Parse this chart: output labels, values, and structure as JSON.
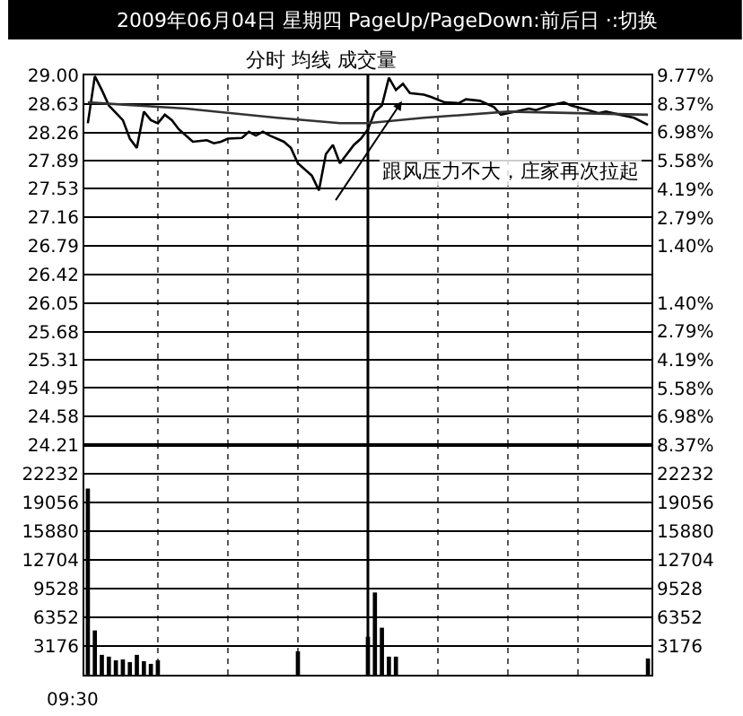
{
  "chart_data": [
    {
      "type": "line",
      "title": "2009年06月04日 星期四 PageUp/PageDown:前后日 ·:切换",
      "subtitle": "分时 均线 成交量",
      "categories": [
        null,
        null,
        null,
        null,
        null,
        null,
        null,
        null,
        null,
        null,
        null,
        null,
        null,
        null,
        null,
        null,
        null,
        null,
        null,
        null,
        null,
        null,
        null,
        null,
        null,
        null,
        null,
        null,
        null,
        null,
        null,
        null,
        null,
        null,
        null,
        null,
        null,
        null,
        null,
        null,
        null,
        null,
        null,
        null,
        null,
        null,
        null,
        null,
        null,
        null,
        null,
        null,
        null,
        null,
        null,
        null,
        null,
        null,
        null,
        null,
        null,
        null,
        null,
        null,
        null,
        null,
        null,
        null,
        null,
        null,
        null,
        null,
        null,
        null,
        null,
        null,
        null,
        null,
        null,
        null,
        null
      ],
      "series": [
        {
          "color": "#000000",
          "values": [
            28.38,
            28.99,
            28.81,
            28.61,
            null,
            28.42,
            28.18,
            28.06,
            28.53,
            28.42,
            28.38,
            28.49,
            28.42,
            28.3,
            28.22,
            28.14,
            null,
            28.16,
            28.12,
            28.14,
            28.18,
            null,
            28.19,
            28.27,
            28.22,
            28.27,
            28.22,
            null,
            28.14,
            28.06,
            27.86,
            null,
            27.7,
            27.51,
            27.98,
            28.1,
            27.86,
            27.98,
            28.1,
            28.18,
            28.3,
            28.53,
            28.61,
            28.97,
            28.81,
            28.89,
            28.77,
            null,
            28.75,
            28.72,
            null,
            28.65,
            null,
            28.64,
            28.69,
            null,
            28.67,
            null,
            28.59,
            28.49,
            null,
            28.53,
            null,
            28.57,
            28.55,
            null,
            28.61,
            null,
            28.65,
            28.61,
            null,
            28.56,
            null,
            28.51,
            28.53,
            null,
            28.49,
            null,
            28.45,
            null,
            28.36
          ]
        },
        {
          "color": "#333333",
          "values": [
            28.65,
            null,
            null,
            null,
            null,
            null,
            null,
            null,
            null,
            null,
            null,
            null,
            null,
            null,
            28.57,
            null,
            null,
            null,
            null,
            null,
            null,
            null,
            null,
            null,
            null,
            null,
            null,
            28.45,
            null,
            null,
            null,
            null,
            null,
            null,
            null,
            null,
            28.38,
            null,
            null,
            null,
            28.38,
            null,
            null,
            null,
            null,
            null,
            null,
            null,
            28.45,
            null,
            null,
            null,
            null,
            null,
            null,
            null,
            null,
            null,
            null,
            null,
            28.53,
            null,
            null,
            null,
            null,
            null,
            null,
            null,
            null,
            null,
            null,
            null,
            null,
            null,
            null,
            null,
            null,
            null,
            null,
            null,
            28.49
          ]
        }
      ],
      "ylim": [
        24.21,
        29.0
      ],
      "yticks": [
        {
          "value": 29.0,
          "label": "29.00"
        },
        {
          "value": 28.63,
          "label": "28.63"
        },
        {
          "value": 28.26,
          "label": "28.26"
        },
        {
          "value": 27.89,
          "label": "27.89"
        },
        {
          "value": 27.53,
          "label": "27.53"
        },
        {
          "value": 27.16,
          "label": "27.16"
        },
        {
          "value": 26.79,
          "label": "26.79"
        },
        {
          "value": 26.42,
          "label": "26.42"
        },
        {
          "value": 26.05,
          "label": "26.05"
        },
        {
          "value": 25.68,
          "label": "25.68"
        },
        {
          "value": 25.31,
          "label": "25.31"
        },
        {
          "value": 24.95,
          "label": "24.95"
        },
        {
          "value": 24.58,
          "label": "24.58"
        },
        {
          "value": 24.21,
          "label": "24.21"
        }
      ],
      "y2lim": [
        -8.37,
        9.77
      ],
      "y2ticks": [
        {
          "value": 9.77,
          "label": "9.77%"
        },
        {
          "value": 8.37,
          "label": "8.37%"
        },
        {
          "value": 6.98,
          "label": "6.98%"
        },
        {
          "value": 5.58,
          "label": "5.58%"
        },
        {
          "value": 4.19,
          "label": "4.19%"
        },
        {
          "value": 2.79,
          "label": "2.79%"
        },
        {
          "value": 1.4,
          "label": "1.40%"
        },
        {
          "value": -1.4,
          "label": "1.40%"
        },
        {
          "value": -2.79,
          "label": "2.79%"
        },
        {
          "value": -4.19,
          "label": "4.19%"
        },
        {
          "value": -5.58,
          "label": "5.58%"
        },
        {
          "value": -6.98,
          "label": "6.98%"
        },
        {
          "value": -8.37,
          "label": "8.37%"
        }
      ],
      "annotations": [
        "跟风压力不大，庄家再次拉起"
      ],
      "grid": true,
      "marker": "none",
      "line_style": "solid"
    },
    {
      "type": "bar",
      "color": "#000000",
      "categories": [
        null,
        null,
        null,
        null,
        null,
        null,
        null,
        null,
        null,
        null,
        null,
        null,
        null,
        null,
        null,
        null,
        null,
        null,
        null,
        null,
        null,
        null,
        null,
        null,
        null,
        null,
        null,
        null,
        null,
        null,
        null,
        null,
        null,
        null,
        null,
        null,
        null,
        null,
        null,
        null,
        null,
        null,
        null,
        null,
        null,
        null,
        null,
        null,
        null,
        null,
        null,
        null,
        null,
        null,
        null,
        null,
        null,
        null,
        null,
        null,
        null,
        null,
        null,
        null,
        null,
        null,
        null,
        null,
        null,
        null,
        null,
        null,
        null,
        null,
        null,
        null,
        null,
        null,
        null,
        null,
        null
      ],
      "values": [
        20600,
        4900,
        2200,
        2000,
        1600,
        1700,
        1400,
        2200,
        1500,
        1200,
        1600,
        null,
        null,
        null,
        null,
        null,
        null,
        null,
        null,
        null,
        null,
        null,
        null,
        null,
        null,
        null,
        null,
        null,
        null,
        null,
        2600,
        null,
        null,
        null,
        null,
        null,
        null,
        null,
        null,
        null,
        4200,
        9100,
        5200,
        2000,
        2000,
        null,
        null,
        null,
        null,
        null,
        null,
        null,
        null,
        null,
        null,
        null,
        null,
        null,
        null,
        null,
        null,
        null,
        null,
        null,
        null,
        null,
        null,
        null,
        null,
        null,
        null,
        null,
        null,
        null,
        null,
        null,
        null,
        null,
        null,
        null,
        1800
      ],
      "ylim": [
        0,
        25408
      ],
      "yticks": [
        3176,
        6352,
        9528,
        12704,
        15880,
        19056,
        22232
      ],
      "y2lim": [
        0,
        25408
      ],
      "y2ticks": [
        3176,
        6352,
        9528,
        12704,
        15880,
        19056,
        22232
      ],
      "annotations": [
        "09:30"
      ],
      "grid": true
    }
  ]
}
